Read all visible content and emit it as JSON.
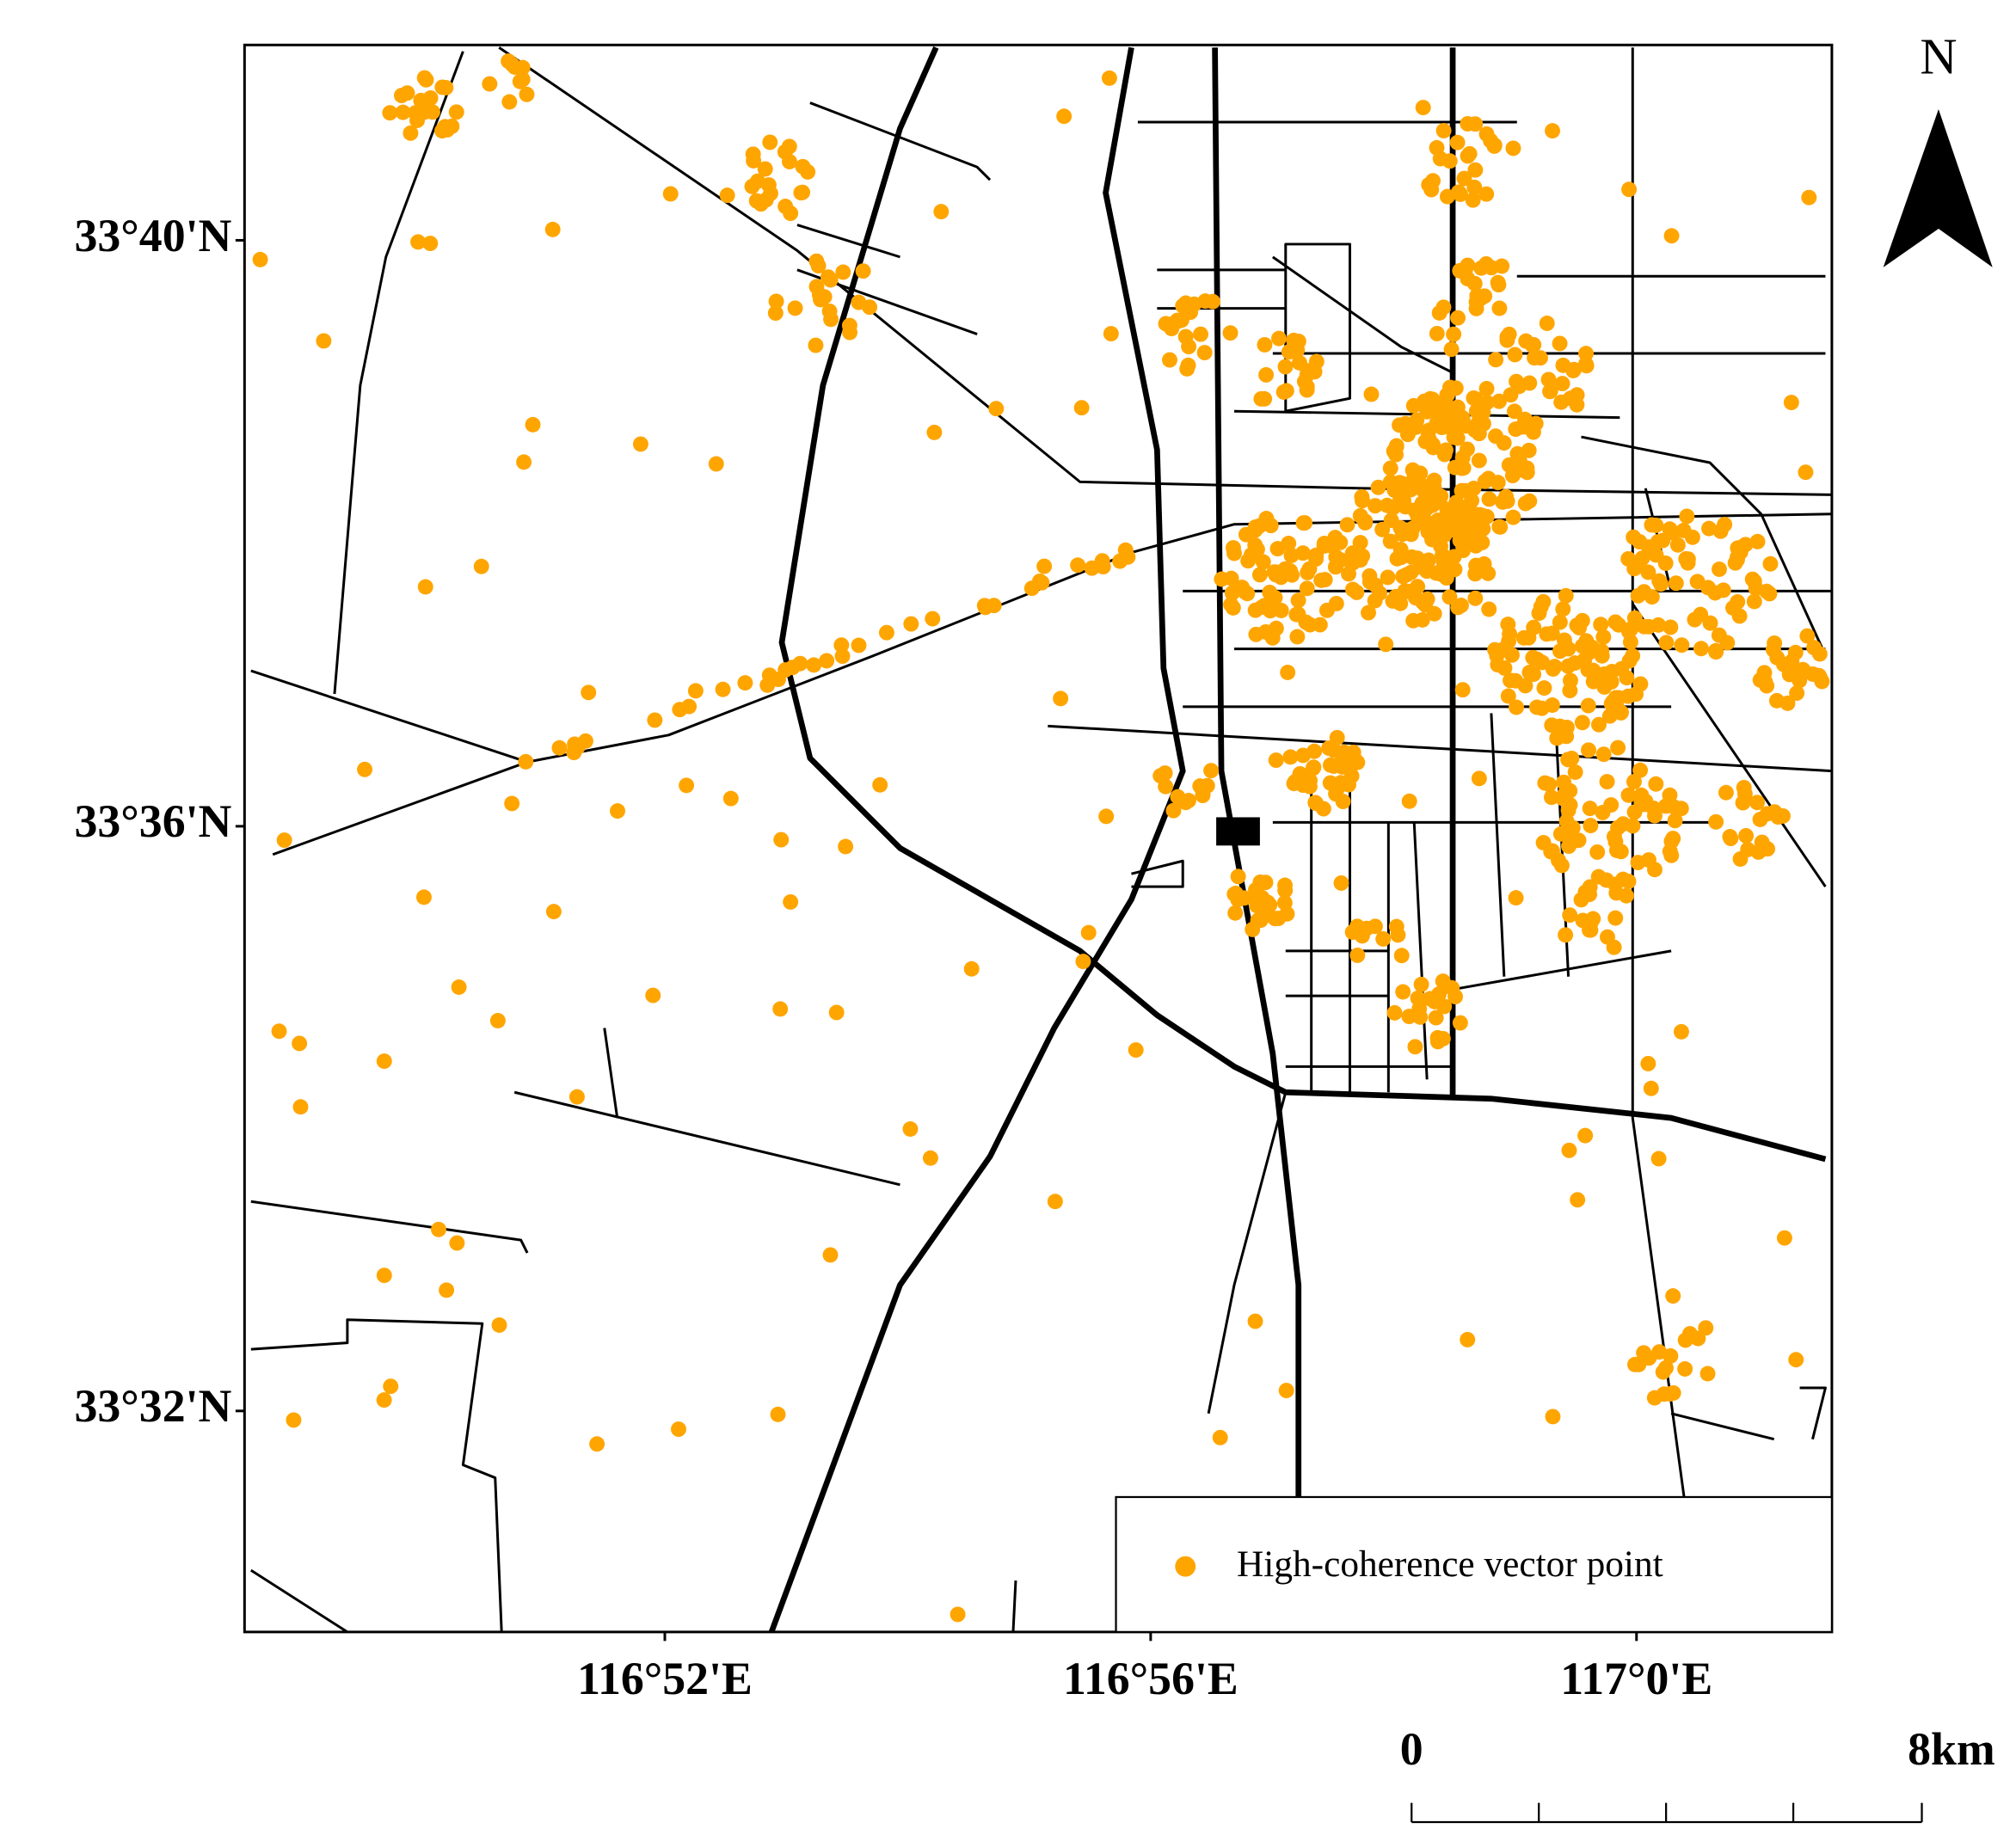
{
  "map": {
    "north": "N",
    "lat_labels": [
      "33°40'N",
      "33°36'N",
      "33°32'N"
    ],
    "lon_labels": [
      "116°52'E",
      "116°56'E",
      "117°0'E"
    ],
    "legend": "High-coherence vector point",
    "scale": {
      "start": "0",
      "end": "8km"
    }
  }
}
